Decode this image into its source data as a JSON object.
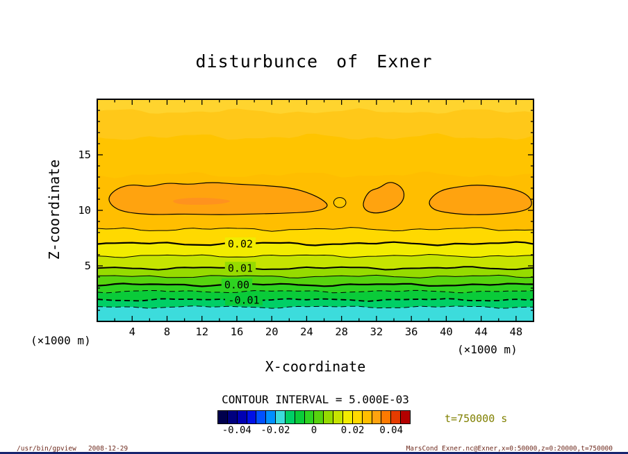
{
  "title": "disturbunce of Exner",
  "axes": {
    "x_label": "X-coordinate",
    "z_label": "Z-coordinate",
    "x_unit": "(×1000 m)",
    "z_unit": "(×1000 m)",
    "x_ticks": [
      4,
      8,
      12,
      16,
      20,
      24,
      28,
      32,
      36,
      40,
      44,
      48
    ],
    "z_ticks": [
      5,
      10,
      15
    ]
  },
  "contour_note": "CONTOUR INTERVAL = 5.000E-03",
  "time_label": "t=750000 s",
  "footer_left": "/usr/bin/gpview   2008-12-29",
  "footer_right": "MarsCond_Exner.nc@Exner,x=0:50000,z=0:20000,t=750000",
  "colorbar": {
    "min": -0.05,
    "max": 0.05,
    "colors": [
      "#00004D",
      "#000080",
      "#0000B3",
      "#0010E6",
      "#0050FF",
      "#0090FF",
      "#3CDCDC",
      "#00CF66",
      "#0ACB39",
      "#2ED321",
      "#57D30E",
      "#96DB00",
      "#C6E400",
      "#F2EC00",
      "#FFD900",
      "#FFBE00",
      "#FFA30F",
      "#FF7A00",
      "#E63C00",
      "#B30000"
    ],
    "ticks": [
      {
        "label": "-0.04",
        "value": -0.04
      },
      {
        "label": "-0.02",
        "value": -0.02
      },
      {
        "label": "0",
        "value": 0
      },
      {
        "label": "0.02",
        "value": 0.02
      },
      {
        "label": "0.04",
        "value": 0.04
      }
    ]
  },
  "chart_data": {
    "type": "heatmap",
    "subtype": "filled_contour",
    "title": "disturbunce of Exner",
    "xlabel": "X-coordinate",
    "zlabel": "Z-coordinate",
    "x_range_m": [
      0,
      50000
    ],
    "z_range_m": [
      0,
      20000
    ],
    "x_max": 50,
    "z_max": 20,
    "x_tick_minor": 2,
    "x_tick_major": 4,
    "z_tick_minor": 1,
    "contour_interval": 0.005,
    "bands": [
      {
        "z": 0.0,
        "color": "#3CDCDC",
        "level": "< -0.015"
      },
      {
        "z": 1.3,
        "amp": 0.13,
        "color": "#00CF66",
        "level": "-0.015 to -0.010"
      },
      {
        "z": 1.95,
        "amp": 0.14,
        "color": "#0ACB39",
        "level": "-0.010 to -0.005"
      },
      {
        "z": 2.7,
        "amp": 0.14,
        "color": "#2ED321",
        "level": "-0.005 to 0.000"
      },
      {
        "z": 3.3,
        "amp": 0.15,
        "color": "#57D30E",
        "level": "0.000 to 0.005"
      },
      {
        "z": 4.05,
        "amp": 0.15,
        "color": "#96DB00",
        "level": "0.005 to 0.010"
      },
      {
        "z": 4.8,
        "amp": 0.16,
        "color": "#C6E400",
        "level": "0.010 to 0.015"
      },
      {
        "z": 5.9,
        "amp": 0.16,
        "color": "#F2EC00",
        "level": "0.015 to 0.020"
      },
      {
        "z": 7.0,
        "amp": 0.18,
        "color": "#FFD900",
        "level": "0.020 to 0.025"
      },
      {
        "z": 8.3,
        "amp": 0.2,
        "color": "#FFBE00",
        "level": "0.025 to 0.030"
      },
      {
        "z": 13.2,
        "amp": 0.32,
        "color": "#FFC400",
        "level": "upper orange"
      },
      {
        "z": 16.6,
        "amp": 0.36,
        "color": "#FFC819",
        "level": "upper lighter orange"
      },
      {
        "z": 18.9,
        "amp": 0.3,
        "color": "#FFD42E",
        "level": "top strip"
      }
    ],
    "contour_lines": [
      {
        "level": 0.025,
        "z": 8.3,
        "amp": 0.2,
        "width": 1.0
      },
      {
        "level": 0.02,
        "z": 7.0,
        "amp": 0.18,
        "width": 2.2,
        "label": {
          "text": "0.02",
          "x": 16.4,
          "bg": "#F2EC00"
        }
      },
      {
        "level": 0.015,
        "z": 5.9,
        "amp": 0.16,
        "width": 1.0
      },
      {
        "level": 0.01,
        "z": 4.8,
        "amp": 0.16,
        "width": 2.0,
        "label": {
          "text": "0.01",
          "x": 16.4,
          "bg": "#96DB00"
        }
      },
      {
        "level": 0.005,
        "z": 4.05,
        "amp": 0.15,
        "width": 1.0
      },
      {
        "level": 0.0,
        "z": 3.3,
        "amp": 0.15,
        "width": 2.2,
        "label": {
          "text": "0.00",
          "x": 16.0,
          "bg": "#2ED321"
        }
      },
      {
        "level": -0.005,
        "z": 2.7,
        "amp": 0.14,
        "width": 1.0,
        "dashed": true
      },
      {
        "level": -0.01,
        "z": 1.95,
        "amp": 0.14,
        "width": 1.8,
        "dashed": true,
        "label": {
          "text": "-0.01",
          "x": 16.8,
          "bg": "#0ACB39"
        }
      },
      {
        "level": -0.015,
        "z": 1.3,
        "amp": 0.13,
        "width": 1.0,
        "dashed": true
      }
    ],
    "blobs": [
      {
        "name": "left-high-blob",
        "fill": "#FFA30F",
        "stroke": "#000",
        "stroke_width": 1.2,
        "points": [
          [
            1.2,
            11.2
          ],
          [
            2.3,
            12.0
          ],
          [
            4,
            12.35
          ],
          [
            6,
            12.1
          ],
          [
            8,
            12.5
          ],
          [
            10.5,
            12.3
          ],
          [
            13,
            12.55
          ],
          [
            16,
            12.35
          ],
          [
            19,
            12.25
          ],
          [
            22,
            12.05
          ],
          [
            24,
            11.65
          ],
          [
            25.8,
            11.0
          ],
          [
            26.6,
            10.35
          ],
          [
            25.2,
            9.9
          ],
          [
            22,
            9.75
          ],
          [
            18,
            9.68
          ],
          [
            14,
            9.6
          ],
          [
            10,
            9.68
          ],
          [
            6,
            9.6
          ],
          [
            3,
            9.85
          ],
          [
            1.6,
            10.4
          ]
        ]
      },
      {
        "name": "left-blob-core",
        "fill": "#FF921E",
        "points": [
          [
            8.5,
            10.9
          ],
          [
            10,
            11.1
          ],
          [
            12,
            11.15
          ],
          [
            14,
            11.05
          ],
          [
            15.5,
            10.85
          ],
          [
            14.5,
            10.6
          ],
          [
            12.5,
            10.5
          ],
          [
            10.5,
            10.5
          ],
          [
            9,
            10.6
          ]
        ]
      },
      {
        "name": "small-dot-blob",
        "fill": "#FFC800",
        "stroke": "#000",
        "ellipse": [
          27.8,
          10.7,
          0.7,
          0.45
        ]
      },
      {
        "name": "middle-high-blob",
        "fill": "#FFA30F",
        "stroke": "#000",
        "stroke_width": 1.2,
        "points": [
          [
            30.4,
            10.4
          ],
          [
            30.7,
            11.2
          ],
          [
            31.3,
            11.8
          ],
          [
            32.3,
            12.0
          ],
          [
            33.4,
            12.6
          ],
          [
            34.5,
            12.35
          ],
          [
            35.2,
            11.7
          ],
          [
            35.1,
            10.9
          ],
          [
            34.3,
            10.25
          ],
          [
            33.2,
            9.9
          ],
          [
            31.9,
            9.72
          ],
          [
            30.9,
            9.9
          ]
        ]
      },
      {
        "name": "right-high-blob",
        "fill": "#FFA30F",
        "stroke": "#000",
        "stroke_width": 1.2,
        "points": [
          [
            37.9,
            10.7
          ],
          [
            38.6,
            11.4
          ],
          [
            39.6,
            11.85
          ],
          [
            41.2,
            12.1
          ],
          [
            43.2,
            12.3
          ],
          [
            45.2,
            12.2
          ],
          [
            47.2,
            12.0
          ],
          [
            48.9,
            11.6
          ],
          [
            49.75,
            11.0
          ],
          [
            49.8,
            10.35
          ],
          [
            48.9,
            9.95
          ],
          [
            47,
            9.72
          ],
          [
            44.5,
            9.6
          ],
          [
            42,
            9.62
          ],
          [
            40,
            9.8
          ],
          [
            38.5,
            10.05
          ]
        ]
      }
    ]
  }
}
